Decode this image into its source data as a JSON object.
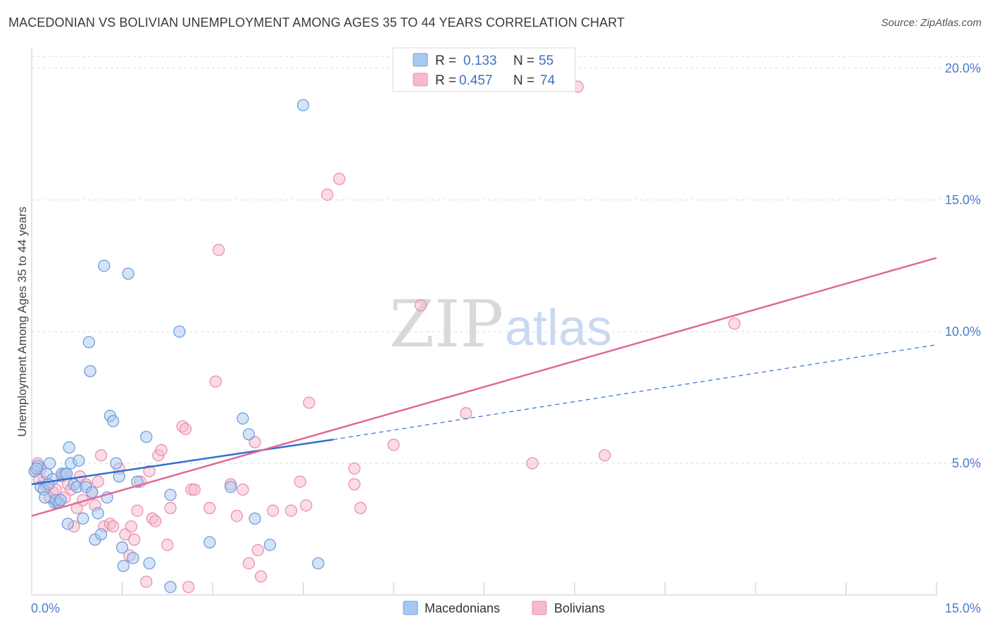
{
  "title": "MACEDONIAN VS BOLIVIAN UNEMPLOYMENT AMONG AGES 35 TO 44 YEARS CORRELATION CHART",
  "source": "Source: ZipAtlas.com",
  "watermark": {
    "zip": "ZIP",
    "atlas": "atlas"
  },
  "legend_top": {
    "r_label": "R =",
    "n_label": "N =",
    "rows": [
      {
        "name": "Macedonians",
        "r": "0.133",
        "n": "55"
      },
      {
        "name": "Bolivians",
        "r": "0.457",
        "n": "74"
      }
    ]
  },
  "legend_bottom": [
    "Macedonians",
    "Bolivians"
  ],
  "colors": {
    "macedonians_fill": "#a9c8ef",
    "macedonians_stroke": "#6f9fdc",
    "macedonians_line": "#2f6fd0",
    "bolivians_fill": "#f6b9cd",
    "bolivians_stroke": "#ec8fae",
    "bolivians_line": "#e0689a",
    "tick": "#4a7cc9",
    "grid": "#dddddd"
  },
  "chart_data": {
    "type": "scatter",
    "title": "MACEDONIAN VS BOLIVIAN UNEMPLOYMENT AMONG AGES 35 TO 44 YEARS CORRELATION CHART",
    "xlabel": "",
    "ylabel": "Unemployment Among Ages 35 to 44 years",
    "xlim": [
      0,
      15
    ],
    "ylim": [
      0,
      20
    ],
    "x_tick_labels": [
      "0.0%",
      "15.0%"
    ],
    "y_ticks": [
      5,
      10,
      15,
      20
    ],
    "y_tick_labels": [
      "5.0%",
      "10.0%",
      "15.0%",
      "20.0%"
    ],
    "grid": true,
    "legend_position": "top-center",
    "series": [
      {
        "name": "Macedonians",
        "points": [
          [
            0.05,
            4.7
          ],
          [
            0.1,
            4.9
          ],
          [
            0.15,
            4.1
          ],
          [
            0.2,
            4.0
          ],
          [
            0.22,
            3.7
          ],
          [
            0.25,
            4.6
          ],
          [
            0.3,
            5.0
          ],
          [
            0.35,
            4.4
          ],
          [
            0.38,
            3.5
          ],
          [
            0.4,
            3.6
          ],
          [
            0.45,
            3.5
          ],
          [
            0.5,
            4.6
          ],
          [
            0.55,
            4.6
          ],
          [
            0.6,
            2.7
          ],
          [
            0.62,
            5.6
          ],
          [
            0.65,
            5.0
          ],
          [
            0.7,
            4.2
          ],
          [
            0.75,
            4.1
          ],
          [
            0.78,
            5.1
          ],
          [
            0.85,
            2.9
          ],
          [
            0.9,
            4.1
          ],
          [
            0.95,
            9.6
          ],
          [
            0.97,
            8.5
          ],
          [
            1.0,
            3.9
          ],
          [
            1.05,
            2.1
          ],
          [
            1.1,
            3.1
          ],
          [
            1.15,
            2.3
          ],
          [
            1.2,
            12.5
          ],
          [
            1.25,
            3.7
          ],
          [
            1.3,
            6.8
          ],
          [
            1.35,
            6.6
          ],
          [
            1.4,
            5.0
          ],
          [
            1.45,
            4.5
          ],
          [
            1.5,
            1.8
          ],
          [
            1.52,
            1.1
          ],
          [
            1.6,
            12.2
          ],
          [
            1.68,
            1.4
          ],
          [
            1.75,
            4.3
          ],
          [
            1.9,
            6.0
          ],
          [
            1.95,
            1.2
          ],
          [
            2.3,
            3.8
          ],
          [
            2.3,
            0.3
          ],
          [
            2.45,
            10.0
          ],
          [
            2.95,
            2.0
          ],
          [
            3.3,
            4.1
          ],
          [
            3.5,
            6.7
          ],
          [
            3.6,
            6.1
          ],
          [
            3.7,
            2.9
          ],
          [
            3.95,
            1.9
          ],
          [
            4.5,
            18.6
          ],
          [
            4.75,
            1.2
          ],
          [
            0.08,
            4.8
          ],
          [
            0.28,
            4.2
          ],
          [
            0.48,
            3.6
          ],
          [
            0.58,
            4.6
          ]
        ],
        "trend": {
          "x0": 0.0,
          "y0": 4.2,
          "x1": 5.0,
          "y1": 5.9,
          "dash_to_x": 15.0,
          "dash_to_y": 9.5
        }
      },
      {
        "name": "Bolivians",
        "points": [
          [
            0.05,
            4.7
          ],
          [
            0.1,
            5.0
          ],
          [
            0.15,
            4.8
          ],
          [
            0.2,
            4.3
          ],
          [
            0.25,
            4.1
          ],
          [
            0.3,
            3.7
          ],
          [
            0.35,
            3.9
          ],
          [
            0.4,
            4.0
          ],
          [
            0.45,
            3.5
          ],
          [
            0.5,
            4.5
          ],
          [
            0.55,
            3.7
          ],
          [
            0.6,
            4.2
          ],
          [
            0.65,
            4.0
          ],
          [
            0.7,
            2.6
          ],
          [
            0.75,
            3.3
          ],
          [
            0.8,
            4.5
          ],
          [
            0.85,
            3.6
          ],
          [
            0.9,
            4.2
          ],
          [
            1.0,
            3.9
          ],
          [
            1.05,
            3.4
          ],
          [
            1.1,
            4.3
          ],
          [
            1.15,
            5.3
          ],
          [
            1.2,
            2.6
          ],
          [
            1.3,
            2.7
          ],
          [
            1.45,
            4.8
          ],
          [
            1.55,
            2.3
          ],
          [
            1.62,
            1.5
          ],
          [
            1.65,
            2.6
          ],
          [
            1.7,
            2.1
          ],
          [
            1.75,
            3.2
          ],
          [
            1.8,
            4.3
          ],
          [
            1.9,
            0.5
          ],
          [
            1.95,
            4.7
          ],
          [
            2.0,
            2.9
          ],
          [
            2.05,
            2.8
          ],
          [
            2.1,
            5.3
          ],
          [
            2.15,
            5.5
          ],
          [
            2.25,
            1.9
          ],
          [
            2.3,
            3.3
          ],
          [
            2.5,
            6.4
          ],
          [
            2.55,
            6.3
          ],
          [
            2.6,
            0.3
          ],
          [
            2.65,
            4.0
          ],
          [
            2.7,
            4.0
          ],
          [
            2.95,
            3.3
          ],
          [
            3.05,
            8.1
          ],
          [
            3.1,
            13.1
          ],
          [
            3.3,
            4.2
          ],
          [
            3.4,
            3.0
          ],
          [
            3.5,
            4.0
          ],
          [
            3.6,
            1.2
          ],
          [
            3.7,
            5.8
          ],
          [
            3.75,
            1.7
          ],
          [
            3.8,
            0.7
          ],
          [
            4.0,
            3.2
          ],
          [
            4.3,
            3.2
          ],
          [
            4.45,
            4.3
          ],
          [
            4.55,
            3.4
          ],
          [
            4.6,
            7.3
          ],
          [
            4.9,
            15.2
          ],
          [
            5.1,
            15.8
          ],
          [
            5.35,
            4.8
          ],
          [
            5.35,
            4.2
          ],
          [
            5.45,
            3.3
          ],
          [
            6.0,
            5.7
          ],
          [
            6.45,
            11.0
          ],
          [
            7.2,
            6.9
          ],
          [
            8.3,
            5.0
          ],
          [
            9.05,
            19.3
          ],
          [
            9.5,
            5.3
          ],
          [
            11.65,
            10.3
          ],
          [
            0.12,
            4.4
          ],
          [
            0.42,
            3.5
          ],
          [
            1.35,
            2.6
          ]
        ],
        "trend": {
          "x0": 0.0,
          "y0": 3.0,
          "x1": 15.0,
          "y1": 12.8
        }
      }
    ]
  }
}
